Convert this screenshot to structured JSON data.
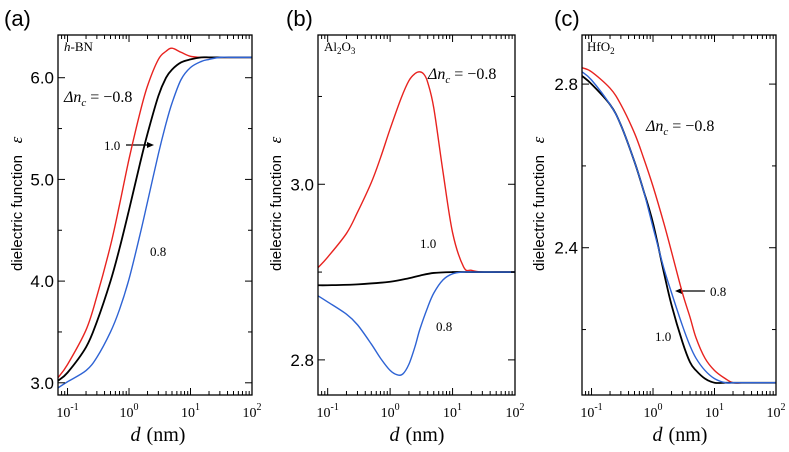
{
  "chart_data": [
    {
      "type": "line",
      "panel_label": "(a)",
      "material": "h-BN",
      "material_italic": "h",
      "material_rest": "-BN",
      "xlabel_var": "d",
      "xlabel_unit": "(nm)",
      "ylabel_text": "dielectric function",
      "ylabel_symbol": "ε",
      "xscale": "log",
      "xlim": [
        0.07,
        100
      ],
      "ylim": [
        2.88,
        6.42
      ],
      "xticks": [
        {
          "value": 0.1,
          "base": "10",
          "exp": "-1"
        },
        {
          "value": 1,
          "base": "10",
          "exp": "0"
        },
        {
          "value": 10,
          "base": "10",
          "exp": "1"
        },
        {
          "value": 100,
          "base": "10",
          "exp": "2"
        }
      ],
      "yticks": [
        {
          "value": 3.0,
          "label": "3.0"
        },
        {
          "value": 4.0,
          "label": "4.0"
        },
        {
          "value": 5.0,
          "label": "5.0"
        },
        {
          "value": 6.0,
          "label": "6.0"
        }
      ],
      "series": [
        {
          "name": "Δn_c = -0.8",
          "color": "#e8231f",
          "x": [
            0.07,
            0.1,
            0.2,
            0.3,
            0.5,
            0.7,
            1,
            1.5,
            2,
            3,
            4,
            5,
            7,
            10,
            15,
            20,
            30,
            50,
            100
          ],
          "y": [
            3.05,
            3.18,
            3.52,
            3.85,
            4.35,
            4.75,
            5.2,
            5.65,
            5.92,
            6.18,
            6.26,
            6.29,
            6.25,
            6.21,
            6.2,
            6.2,
            6.2,
            6.2,
            6.2
          ]
        },
        {
          "name": "1.0",
          "color": "#000000",
          "x": [
            0.07,
            0.1,
            0.2,
            0.3,
            0.5,
            0.7,
            1,
            1.5,
            2,
            3,
            4,
            5,
            7,
            10,
            15,
            20,
            30,
            50,
            100
          ],
          "y": [
            3.02,
            3.1,
            3.35,
            3.6,
            4.0,
            4.32,
            4.7,
            5.15,
            5.45,
            5.82,
            6.0,
            6.08,
            6.15,
            6.18,
            6.2,
            6.2,
            6.2,
            6.2,
            6.2
          ]
        },
        {
          "name": "0.8",
          "color": "#2e63d4",
          "x": [
            0.07,
            0.1,
            0.2,
            0.3,
            0.5,
            0.7,
            1,
            1.5,
            2,
            3,
            4,
            5,
            7,
            10,
            15,
            20,
            30,
            50,
            100
          ],
          "y": [
            2.95,
            3.01,
            3.12,
            3.25,
            3.5,
            3.72,
            4.02,
            4.45,
            4.78,
            5.25,
            5.55,
            5.75,
            5.98,
            6.1,
            6.16,
            6.18,
            6.2,
            6.2,
            6.2
          ]
        }
      ],
      "annotations": {
        "dn_lhs": "Δn",
        "dn_sub": "c",
        "dn_rhs": " = −0.8",
        "black_value": "1.0",
        "blue_value": "0.8"
      }
    },
    {
      "type": "line",
      "panel_label": "(b)",
      "material": "Al2O3",
      "material_pre": "Al",
      "material_sub1": "2",
      "material_mid": "O",
      "material_sub2": "3",
      "xlabel_var": "d",
      "xlabel_unit": "(nm)",
      "ylabel_text": "dielectric function",
      "ylabel_symbol": "ε",
      "xscale": "log",
      "xlim": [
        0.07,
        100
      ],
      "ylim": [
        2.76,
        3.17
      ],
      "xticks": [
        {
          "value": 0.1,
          "base": "10",
          "exp": "-1"
        },
        {
          "value": 1,
          "base": "10",
          "exp": "0"
        },
        {
          "value": 10,
          "base": "10",
          "exp": "1"
        },
        {
          "value": 100,
          "base": "10",
          "exp": "2"
        }
      ],
      "yticks": [
        {
          "value": 2.8,
          "label": "2.8"
        },
        {
          "value": 3.0,
          "label": "3.0"
        }
      ],
      "series": [
        {
          "name": "Δn_c = -0.8",
          "color": "#e8231f",
          "x": [
            0.07,
            0.1,
            0.2,
            0.3,
            0.5,
            0.7,
            1,
            1.5,
            2,
            2.5,
            3,
            3.5,
            4,
            5,
            7,
            10,
            15,
            20,
            30,
            50,
            100
          ],
          "y": [
            2.905,
            2.917,
            2.944,
            2.968,
            3.002,
            3.03,
            3.063,
            3.098,
            3.118,
            3.126,
            3.128,
            3.125,
            3.116,
            3.087,
            3.015,
            2.945,
            2.906,
            2.902,
            2.9,
            2.9,
            2.9
          ]
        },
        {
          "name": "1.0",
          "color": "#000000",
          "x": [
            0.07,
            0.1,
            0.3,
            1,
            2,
            3,
            5,
            10,
            20,
            50,
            100
          ],
          "y": [
            2.885,
            2.885,
            2.886,
            2.889,
            2.893,
            2.896,
            2.899,
            2.9,
            2.9,
            2.9,
            2.9
          ]
        },
        {
          "name": "0.8",
          "color": "#2e63d4",
          "x": [
            0.07,
            0.1,
            0.2,
            0.3,
            0.5,
            0.7,
            1,
            1.3,
            1.6,
            2,
            2.5,
            3,
            4,
            5,
            7,
            10,
            15,
            20,
            30,
            50,
            100
          ],
          "y": [
            2.873,
            2.866,
            2.852,
            2.84,
            2.818,
            2.802,
            2.788,
            2.783,
            2.784,
            2.795,
            2.815,
            2.835,
            2.86,
            2.876,
            2.891,
            2.898,
            2.9,
            2.9,
            2.9,
            2.9,
            2.9
          ]
        }
      ],
      "annotations": {
        "dn_lhs": "Δn",
        "dn_sub": "c",
        "dn_rhs": " = −0.8",
        "black_value": "1.0",
        "blue_value": "0.8"
      }
    },
    {
      "type": "line",
      "panel_label": "(c)",
      "material": "HfO2",
      "material_pre": "HfO",
      "material_sub": "2",
      "xlabel_var": "d",
      "xlabel_unit": "(nm)",
      "ylabel_text": "dielectric function",
      "ylabel_symbol": "ε",
      "xscale": "log",
      "xlim": [
        0.07,
        100
      ],
      "ylim": [
        2.04,
        2.92
      ],
      "xticks": [
        {
          "value": 0.1,
          "base": "10",
          "exp": "-1"
        },
        {
          "value": 1,
          "base": "10",
          "exp": "0"
        },
        {
          "value": 10,
          "base": "10",
          "exp": "1"
        },
        {
          "value": 100,
          "base": "10",
          "exp": "2"
        }
      ],
      "yticks": [
        {
          "value": 2.4,
          "label": "2.4"
        },
        {
          "value": 2.8,
          "label": "2.8"
        }
      ],
      "series": [
        {
          "name": "Δn_c = -0.8",
          "color": "#e8231f",
          "x": [
            0.07,
            0.1,
            0.2,
            0.3,
            0.5,
            0.7,
            1,
            1.5,
            2,
            3,
            4,
            5,
            7,
            10,
            15,
            20,
            30,
            50,
            100
          ],
          "y": [
            2.84,
            2.83,
            2.79,
            2.75,
            2.68,
            2.62,
            2.55,
            2.46,
            2.39,
            2.29,
            2.23,
            2.18,
            2.13,
            2.1,
            2.08,
            2.07,
            2.07,
            2.07,
            2.07
          ]
        },
        {
          "name": "1.0",
          "color": "#000000",
          "x": [
            0.07,
            0.1,
            0.2,
            0.3,
            0.5,
            0.7,
            1,
            1.5,
            2,
            3,
            4,
            5,
            7,
            10,
            15,
            20,
            30,
            50,
            100
          ],
          "y": [
            2.82,
            2.8,
            2.75,
            2.7,
            2.61,
            2.54,
            2.46,
            2.34,
            2.26,
            2.17,
            2.12,
            2.1,
            2.08,
            2.07,
            2.07,
            2.07,
            2.07,
            2.07,
            2.07
          ]
        },
        {
          "name": "0.8",
          "color": "#2e63d4",
          "x": [
            0.07,
            0.1,
            0.2,
            0.3,
            0.5,
            0.7,
            1,
            1.5,
            2,
            3,
            4,
            5,
            7,
            10,
            15,
            20,
            30,
            50,
            100
          ],
          "y": [
            2.83,
            2.81,
            2.75,
            2.7,
            2.61,
            2.54,
            2.45,
            2.35,
            2.29,
            2.21,
            2.16,
            2.13,
            2.1,
            2.08,
            2.07,
            2.07,
            2.07,
            2.07,
            2.07
          ]
        }
      ],
      "annotations": {
        "dn_lhs": "Δn",
        "dn_sub": "c",
        "dn_rhs": " = −0.8",
        "black_value": "1.0",
        "blue_value": "0.8"
      }
    }
  ]
}
